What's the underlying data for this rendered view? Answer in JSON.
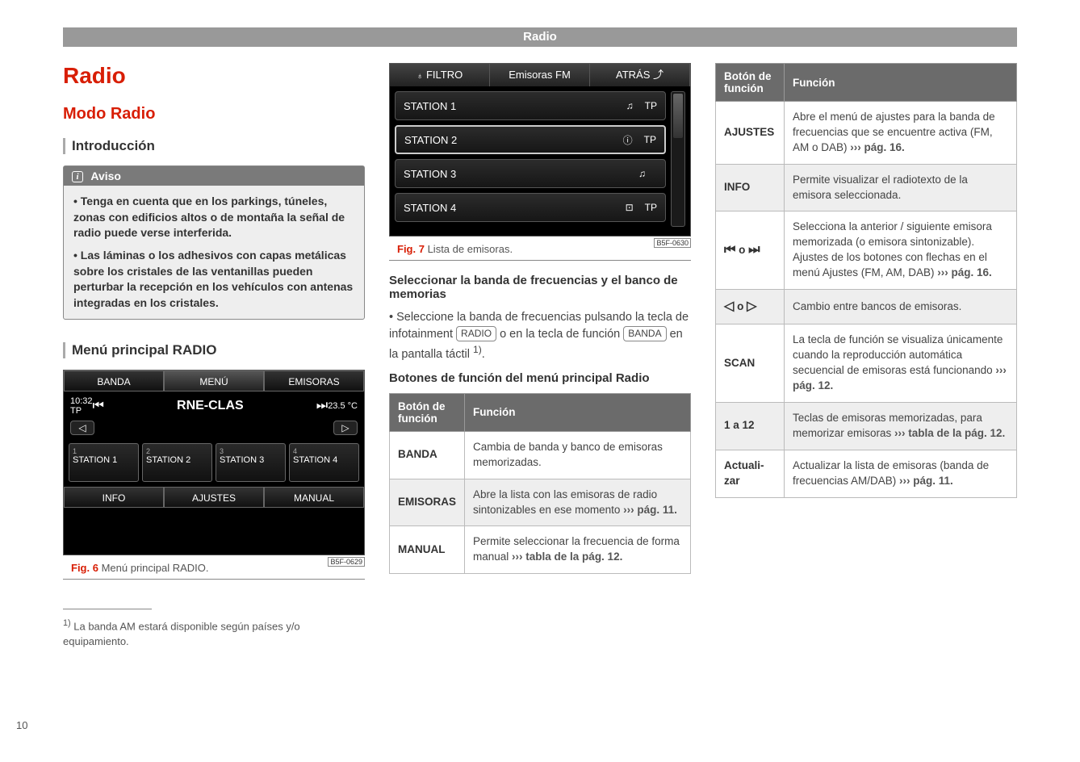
{
  "header": {
    "tab": "Radio"
  },
  "pageNumber": "10",
  "h1": "Radio",
  "h2": "Modo Radio",
  "h3_intro": "Introducción",
  "aviso": {
    "title": "Aviso",
    "p1": "• Tenga en cuenta que en los parkings, túneles, zonas con edificios altos o de montaña la señal de radio puede verse interferida.",
    "p2": "• Las láminas o los adhesivos con capas metálicas sobre los cristales de las ventanillas pueden perturbar la recepción en los vehículos con antenas integradas en los cristales."
  },
  "h3_menu": "Menú principal RADIO",
  "fig6": {
    "id": "B5F-0629",
    "tabs_top": [
      "BANDA",
      "MENÚ",
      "EMISORAS"
    ],
    "time": "10:32",
    "tp": "TP",
    "station": "RNE-CLAS",
    "temp": "23.5 °C",
    "presets": [
      {
        "n": "1",
        "label": "STATION 1"
      },
      {
        "n": "2",
        "label": "STATION 2"
      },
      {
        "n": "3",
        "label": "STATION 3"
      },
      {
        "n": "4",
        "label": "STATION 4"
      }
    ],
    "tabs_bot": [
      "INFO",
      "AJUSTES",
      "MANUAL"
    ],
    "caption_num": "Fig. 6",
    "caption_text": "Menú principal RADIO."
  },
  "fig7": {
    "id": "B5F-0630",
    "filter": "FILTRO",
    "title": "Emisoras FM",
    "back": "ATRÁS",
    "rows": [
      {
        "name": "STATION 1",
        "icons": [
          "♫",
          "TP"
        ]
      },
      {
        "name": "STATION 2",
        "icons": [
          "ⓘ",
          "TP"
        ]
      },
      {
        "name": "STATION 3",
        "icons": [
          "♫",
          ""
        ]
      },
      {
        "name": "STATION 4",
        "icons": [
          "⊡",
          "TP"
        ]
      }
    ],
    "caption_num": "Fig. 7",
    "caption_text": "Lista de emisoras."
  },
  "section_band": {
    "heading": "Seleccionar la banda de frecuencias y el banco de memorias",
    "p1a": "• Seleccione la banda de frecuencias pulsando la tecla de infotainment ",
    "key1": "RADIO",
    "p1b": " o en la tecla de función ",
    "key2": "BANDA",
    "p1c": " en la pantalla táctil ",
    "sup": "1)",
    "p1d": "."
  },
  "section_buttons_heading": "Botones de función del menú principal Radio",
  "table1": {
    "hdr1": "Botón de función",
    "hdr2": "Función",
    "rows": [
      {
        "btn": "BANDA",
        "desc": "Cambia de banda y banco de emisoras memorizadas."
      },
      {
        "btn": "EMISORAS",
        "desc": "Abre la lista con las emisoras de radio sintonizables en ese momento ",
        "ref": "››› pág. 11."
      },
      {
        "btn": "MANUAL",
        "desc": "Permite seleccionar la frecuencia de forma manual ",
        "ref": "››› tabla de la pág. 12."
      }
    ]
  },
  "table2": {
    "hdr1": "Botón de función",
    "hdr2": "Función",
    "rows": [
      {
        "btn": "AJUSTES",
        "desc": "Abre el menú de ajustes para la banda de frecuencias que se encuentre activa (FM, AM o DAB) ",
        "ref": "››› pág. 16."
      },
      {
        "btn": "INFO",
        "desc": "Permite visualizar el radiotexto de la emisora seleccionada."
      },
      {
        "btn_html": "skipicons",
        "desc": "Selecciona la anterior / siguiente emisora memorizada (o emisora sintonizable). Ajustes de los botones con flechas en el menú Ajustes (FM, AM, DAB) ",
        "ref": "››› pág. 16."
      },
      {
        "btn_html": "arrowicons",
        "desc": "Cambio entre bancos de emisoras."
      },
      {
        "btn": "SCAN",
        "desc": "La tecla de función se visualiza únicamente cuando la reproducción automática secuencial de emisoras está funcionando ",
        "ref": "››› pág. 12."
      },
      {
        "btn_html": "range112",
        "desc": "Teclas de emisoras memorizadas, para memorizar emisoras ",
        "ref": "››› tabla de la pág. 12."
      },
      {
        "btn_mono": "Actuali-\nzar",
        "desc": "Actualizar la lista de emisoras (banda de frecuencias AM/DAB) ",
        "ref": "››› pág. 11."
      }
    ]
  },
  "footnote": {
    "sup": "1)",
    "text": " La banda AM estará disponible según países y/o equipamiento."
  },
  "icons": {
    "skip_prev": "⏮",
    "skip_next": "⏭",
    "or": " o ",
    "tri_left": "◁",
    "tri_right": "▷",
    "range_a": "1",
    "range_to": " a ",
    "range_b": "12"
  }
}
